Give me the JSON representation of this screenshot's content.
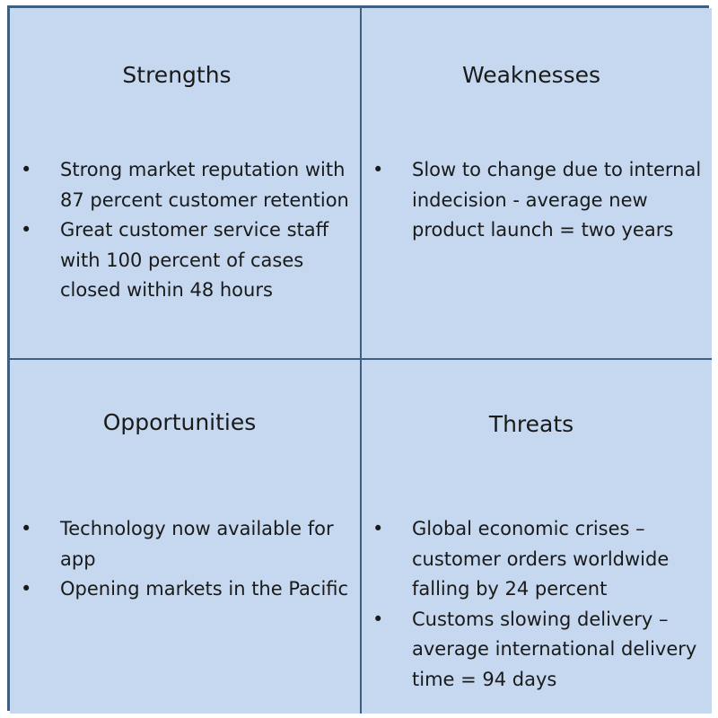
{
  "swot": {
    "strengths": {
      "title": "Strengths",
      "items": [
        "Strong market reputation with 87 percent customer retention",
        "Great customer service staff with 100 percent of cases closed within 48 hours"
      ]
    },
    "weaknesses": {
      "title": "Weaknesses",
      "items": [
        "Slow to change due to internal indecision  - average new product launch = two years"
      ]
    },
    "opportunities": {
      "title": "Opportunities",
      "items": [
        "Technology now available for app",
        "Opening markets in  the Pacific"
      ]
    },
    "threats": {
      "title": "Threats",
      "items": [
        "Global economic crises – customer orders worldwide falling by 24 percent",
        "Customs slowing delivery – average international delivery time = 94 days"
      ]
    }
  },
  "colors": {
    "fill": "#c5d8ef",
    "border": "#3f5f82",
    "text": "#1a1a1a"
  },
  "icons": {
    "bullet": "•"
  }
}
